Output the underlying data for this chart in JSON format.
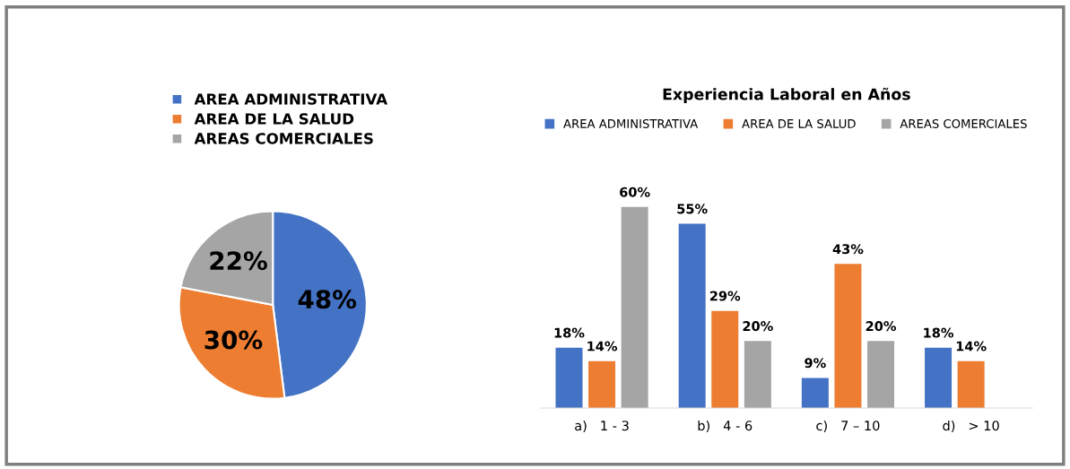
{
  "chart_data": [
    {
      "type": "pie",
      "categories": [
        "AREA ADMINISTRATIVA",
        "AREA DE LA SALUD",
        "AREAS COMERCIALES"
      ],
      "values": [
        48,
        30,
        22
      ],
      "colors": [
        "#4472c4",
        "#ed7d31",
        "#a5a5a5"
      ],
      "value_labels": [
        "48%",
        "30%",
        "22%"
      ],
      "legend": "top"
    },
    {
      "type": "bar",
      "title": "Experiencia Laboral en Años",
      "categories": [
        "a)   1 - 3",
        "b)   4 - 6",
        "c)   7 – 10",
        "d)   > 10"
      ],
      "legend": "top",
      "series": [
        {
          "name": "AREA ADMINISTRATIVA",
          "color": "#4472c4",
          "values": [
            18,
            55,
            9,
            18
          ],
          "value_labels": [
            "18%",
            "55%",
            "9%",
            "18%"
          ]
        },
        {
          "name": "AREA DE LA SALUD",
          "color": "#ed7d31",
          "values": [
            14,
            29,
            43,
            14
          ],
          "value_labels": [
            "14%",
            "29%",
            "43%",
            "14%"
          ]
        },
        {
          "name": "AREAS COMERCIALES",
          "color": "#a5a5a5",
          "values": [
            60,
            20,
            20,
            null
          ],
          "value_labels": [
            "60%",
            "20%",
            "20%",
            null
          ]
        }
      ]
    }
  ]
}
